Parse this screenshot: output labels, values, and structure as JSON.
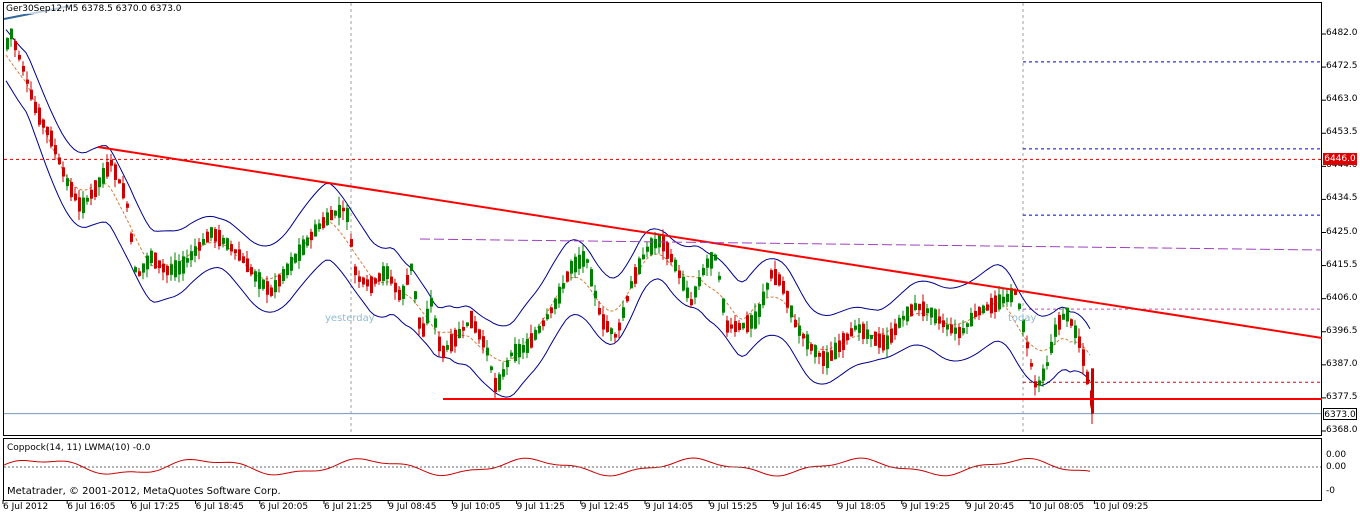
{
  "header": {
    "symbol_label": "Ger30Sep12,M5",
    "ohlc": "6378.5 6370.0 6373.0"
  },
  "price_axis": {
    "ticks": [
      "6482.0",
      "6472.5",
      "6463.0",
      "6453.5",
      "6444.0",
      "6434.5",
      "6425.0",
      "6415.5",
      "6406.0",
      "6396.5",
      "6387.0",
      "6377.5",
      "6368.0"
    ],
    "tag_red": "6446.0",
    "tag_current": "6373.0"
  },
  "time_axis": {
    "ticks": [
      "6 Jul 2012",
      "6 Jul 16:05",
      "6 Jul 17:25",
      "6 Jul 18:45",
      "6 Jul 20:05",
      "6 Jul 21:25",
      "9 Jul 08:45",
      "9 Jul 10:05",
      "9 Jul 11:25",
      "9 Jul 12:45",
      "9 Jul 14:05",
      "9 Jul 15:25",
      "9 Jul 16:45",
      "9 Jul 18:05",
      "9 Jul 19:25",
      "9 Jul 20:45",
      "10 Jul 08:05",
      "10 Jul 09:25"
    ]
  },
  "annotations": {
    "yesterday_label": "yesterday",
    "today_label": "today"
  },
  "indicator": {
    "label": "Coppock(14, 11) LWMA(10) -0.0",
    "ticks": [
      "0.00",
      "0.00",
      "-0"
    ],
    "copyright": "Metatrader, © 2001-2012, MetaQuotes Software Corp."
  },
  "colors": {
    "bull": "#008000",
    "bear": "#cc0000",
    "bands": "#00008b",
    "trendline": "#ff0000",
    "coppock": "#cc0000",
    "grid_sep": "#b0b0b0",
    "tag_red_bg": "#dd0000"
  },
  "chart_data": {
    "type": "candlestick",
    "symbol": "Ger30Sep12",
    "timeframe": "M5",
    "ylim": [
      6366,
      6488
    ],
    "trendlines": [
      {
        "from": [
          "6 Jul 16:05",
          6449
        ],
        "to": [
          "10 Jul 09:25+",
          6395
        ],
        "color": "red"
      },
      {
        "from": [
          "9 Jul 08:45",
          6377.5
        ],
        "to": [
          "10 Jul 09:25",
          6377.5
        ],
        "color": "red"
      }
    ],
    "levels": [
      6474,
      6449,
      6446,
      6430,
      6420,
      6403,
      6382
    ],
    "close_path": [
      [
        0,
        6475
      ],
      [
        10,
        6482
      ],
      [
        22,
        6472
      ],
      [
        35,
        6460
      ],
      [
        50,
        6452
      ],
      [
        65,
        6440
      ],
      [
        80,
        6432
      ],
      [
        95,
        6438
      ],
      [
        110,
        6445
      ],
      [
        125,
        6435
      ],
      [
        135,
        6412
      ],
      [
        150,
        6418
      ],
      [
        165,
        6414
      ],
      [
        180,
        6415
      ],
      [
        195,
        6420
      ],
      [
        210,
        6425
      ],
      [
        225,
        6422
      ],
      [
        240,
        6418
      ],
      [
        255,
        6412
      ],
      [
        270,
        6408
      ],
      [
        285,
        6414
      ],
      [
        300,
        6420
      ],
      [
        315,
        6426
      ],
      [
        330,
        6430
      ],
      [
        345,
        6432
      ],
      [
        355,
        6412
      ],
      [
        370,
        6410
      ],
      [
        385,
        6414
      ],
      [
        400,
        6406
      ],
      [
        410,
        6415
      ],
      [
        420,
        6395
      ],
      [
        430,
        6405
      ],
      [
        440,
        6390
      ],
      [
        455,
        6395
      ],
      [
        470,
        6400
      ],
      [
        485,
        6392
      ],
      [
        495,
        6380
      ],
      [
        510,
        6390
      ],
      [
        525,
        6392
      ],
      [
        540,
        6398
      ],
      [
        555,
        6405
      ],
      [
        570,
        6415
      ],
      [
        585,
        6418
      ],
      [
        600,
        6400
      ],
      [
        615,
        6395
      ],
      [
        630,
        6410
      ],
      [
        645,
        6420
      ],
      [
        660,
        6423
      ],
      [
        675,
        6415
      ],
      [
        690,
        6405
      ],
      [
        705,
        6416
      ],
      [
        715,
        6418
      ],
      [
        725,
        6398
      ],
      [
        740,
        6398
      ],
      [
        755,
        6400
      ],
      [
        770,
        6413
      ],
      [
        780,
        6411
      ],
      [
        795,
        6398
      ],
      [
        810,
        6392
      ],
      [
        825,
        6388
      ],
      [
        840,
        6393
      ],
      [
        855,
        6398
      ],
      [
        870,
        6395
      ],
      [
        885,
        6393
      ],
      [
        900,
        6400
      ],
      [
        915,
        6404
      ],
      [
        930,
        6402
      ],
      [
        945,
        6398
      ],
      [
        960,
        6396
      ],
      [
        975,
        6402
      ],
      [
        990,
        6404
      ],
      [
        1005,
        6406
      ],
      [
        1015,
        6408
      ],
      [
        1025,
        6394
      ],
      [
        1035,
        6380
      ],
      [
        1045,
        6386
      ],
      [
        1055,
        6398
      ],
      [
        1065,
        6402
      ],
      [
        1072,
        6398
      ],
      [
        1080,
        6392
      ],
      [
        1093,
        6373
      ]
    ]
  }
}
